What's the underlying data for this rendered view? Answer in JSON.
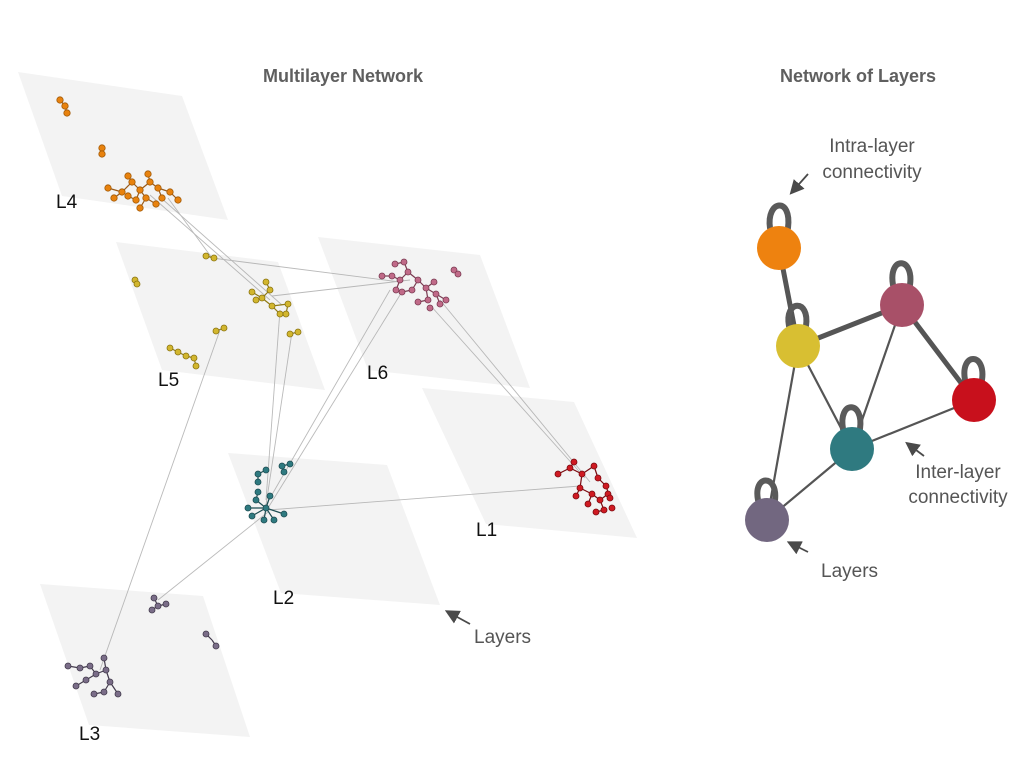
{
  "left_panel": {
    "title": "Multilayer Network",
    "layers_annotation": "Layers",
    "layers": [
      {
        "id": "L1",
        "label": "L1",
        "color": "#c8101c"
      },
      {
        "id": "L2",
        "label": "L2",
        "color": "#2f7a80"
      },
      {
        "id": "L3",
        "label": "L3",
        "color": "#6f627a"
      },
      {
        "id": "L4",
        "label": "L4",
        "color": "#e8820e"
      },
      {
        "id": "L5",
        "label": "L5",
        "color": "#d2b62e"
      },
      {
        "id": "L6",
        "label": "L6",
        "color": "#a85570"
      }
    ],
    "plane_color": "#f3f3f3"
  },
  "right_panel": {
    "title": "Network of Layers",
    "intra_label": [
      "Intra-layer",
      "connectivity"
    ],
    "inter_label": [
      "Inter-layer",
      "connectivity"
    ],
    "layers_label": "Layers",
    "nodes": [
      {
        "id": "L4",
        "color": "#ee820f"
      },
      {
        "id": "L5",
        "color": "#d8bf32"
      },
      {
        "id": "L6",
        "color": "#a85068"
      },
      {
        "id": "L1",
        "color": "#c8101c"
      },
      {
        "id": "L2",
        "color": "#2f7a80"
      },
      {
        "id": "L3",
        "color": "#726780"
      }
    ],
    "edges": [
      {
        "from": "L4",
        "to": "L5",
        "weight": "strong"
      },
      {
        "from": "L5",
        "to": "L6",
        "weight": "strong"
      },
      {
        "from": "L6",
        "to": "L1",
        "weight": "strong"
      },
      {
        "from": "L5",
        "to": "L2",
        "weight": "thin"
      },
      {
        "from": "L6",
        "to": "L2",
        "weight": "thin"
      },
      {
        "from": "L5",
        "to": "L3",
        "weight": "thin"
      },
      {
        "from": "L2",
        "to": "L1",
        "weight": "thin"
      },
      {
        "from": "L2",
        "to": "L3",
        "weight": "thin"
      }
    ]
  }
}
